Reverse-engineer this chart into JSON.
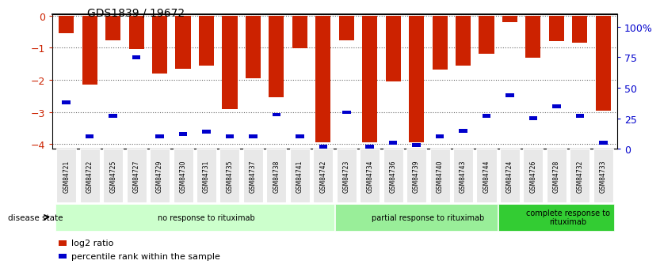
{
  "title": "GDS1839 / 19672",
  "samples": [
    "GSM84721",
    "GSM84722",
    "GSM84725",
    "GSM84727",
    "GSM84729",
    "GSM84730",
    "GSM84731",
    "GSM84735",
    "GSM84737",
    "GSM84738",
    "GSM84741",
    "GSM84742",
    "GSM84723",
    "GSM84734",
    "GSM84736",
    "GSM84739",
    "GSM84740",
    "GSM84743",
    "GSM84744",
    "GSM84724",
    "GSM84726",
    "GSM84728",
    "GSM84732",
    "GSM84733"
  ],
  "log2_ratio": [
    -0.55,
    -2.15,
    -0.78,
    -1.03,
    -1.8,
    -1.65,
    -1.55,
    -2.9,
    -1.95,
    -2.55,
    -1.02,
    -3.95,
    -0.77,
    -3.95,
    -2.05,
    -3.95,
    -1.68,
    -1.55,
    -1.2,
    -0.2,
    -1.3,
    -0.8,
    -0.85,
    -2.95
  ],
  "percentile": [
    38,
    10,
    27,
    75,
    10,
    12,
    14,
    10,
    10,
    28,
    10,
    2,
    30,
    2,
    5,
    3,
    10,
    15,
    27,
    44,
    25,
    35,
    27,
    5
  ],
  "groups": [
    {
      "label": "no response to rituximab",
      "start": 0,
      "end": 12,
      "color": "#ccffcc"
    },
    {
      "label": "partial response to rituximab",
      "start": 12,
      "end": 19,
      "color": "#99ee99"
    },
    {
      "label": "complete response to\nrituximab",
      "start": 19,
      "end": 24,
      "color": "#33cc33"
    }
  ],
  "bar_color": "#cc2200",
  "percentile_color": "#0000cc",
  "ylim_left": [
    -4.15,
    0.05
  ],
  "ylim_right": [
    0,
    110.25
  ],
  "yticks_left": [
    0,
    -1,
    -2,
    -3,
    -4
  ],
  "yticks_right": [
    0,
    25,
    50,
    75,
    100
  ],
  "yticklabels_right": [
    "0",
    "25",
    "50",
    "75",
    "100%"
  ],
  "ylabel_left_color": "#cc2200",
  "ylabel_right_color": "#0000cc",
  "bar_width": 0.65,
  "legend_items": [
    {
      "label": "log2 ratio",
      "color": "#cc2200"
    },
    {
      "label": "percentile rank within the sample",
      "color": "#0000cc"
    }
  ],
  "disease_state_label": "disease state",
  "background_color": "#ffffff"
}
